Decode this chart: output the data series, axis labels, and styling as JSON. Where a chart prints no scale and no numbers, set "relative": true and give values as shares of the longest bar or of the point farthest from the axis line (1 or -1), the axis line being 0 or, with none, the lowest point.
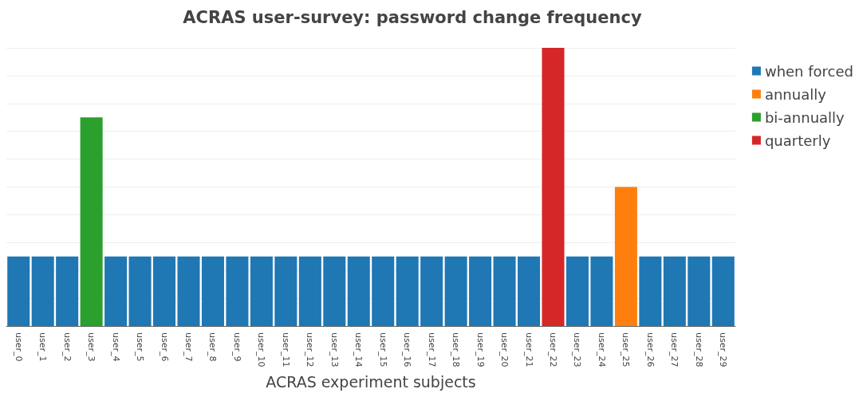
{
  "chart_data": {
    "type": "bar",
    "title": "ACRAS user-survey: password change frequency",
    "xlabel": "ACRAS experiment subjects",
    "categories": [
      "user_0",
      "user_1",
      "user_2",
      "user_3",
      "user_4",
      "user_5",
      "user_6",
      "user_7",
      "user_8",
      "user_9",
      "user_10",
      "user_11",
      "user_12",
      "user_13",
      "user_14",
      "user_15",
      "user_16",
      "user_17",
      "user_18",
      "user_19",
      "user_20",
      "user_21",
      "user_22",
      "user_23",
      "user_24",
      "user_25",
      "user_26",
      "user_27",
      "user_28",
      "user_29"
    ],
    "relative": true,
    "stacked": true,
    "grid": "y",
    "legend": "top right",
    "series": [
      {
        "name": "when forced",
        "color": "#1f77b4",
        "values": [
          0.25,
          0.25,
          0.25,
          null,
          0.25,
          0.25,
          0.25,
          0.25,
          0.25,
          0.25,
          0.25,
          0.25,
          0.25,
          0.25,
          0.25,
          0.25,
          0.25,
          0.25,
          0.25,
          0.25,
          0.25,
          0.25,
          null,
          0.25,
          0.25,
          null,
          0.25,
          0.25,
          0.25,
          0.25
        ]
      },
      {
        "name": "annually",
        "color": "#ff7f0e",
        "values": [
          null,
          null,
          null,
          null,
          null,
          null,
          null,
          null,
          null,
          null,
          null,
          null,
          null,
          null,
          null,
          null,
          null,
          null,
          null,
          null,
          null,
          null,
          null,
          null,
          null,
          0.5,
          null,
          null,
          null,
          null
        ]
      },
      {
        "name": "bi-annually",
        "color": "#2ca02c",
        "values": [
          null,
          null,
          null,
          0.75,
          null,
          null,
          null,
          null,
          null,
          null,
          null,
          null,
          null,
          null,
          null,
          null,
          null,
          null,
          null,
          null,
          null,
          null,
          null,
          null,
          null,
          null,
          null,
          null,
          null,
          null
        ]
      },
      {
        "name": "quarterly",
        "color": "#d62728",
        "values": [
          null,
          null,
          null,
          null,
          null,
          null,
          null,
          null,
          null,
          null,
          null,
          null,
          null,
          null,
          null,
          null,
          null,
          null,
          null,
          null,
          null,
          null,
          1,
          null,
          null,
          null,
          null,
          null,
          null,
          null
        ]
      }
    ]
  }
}
